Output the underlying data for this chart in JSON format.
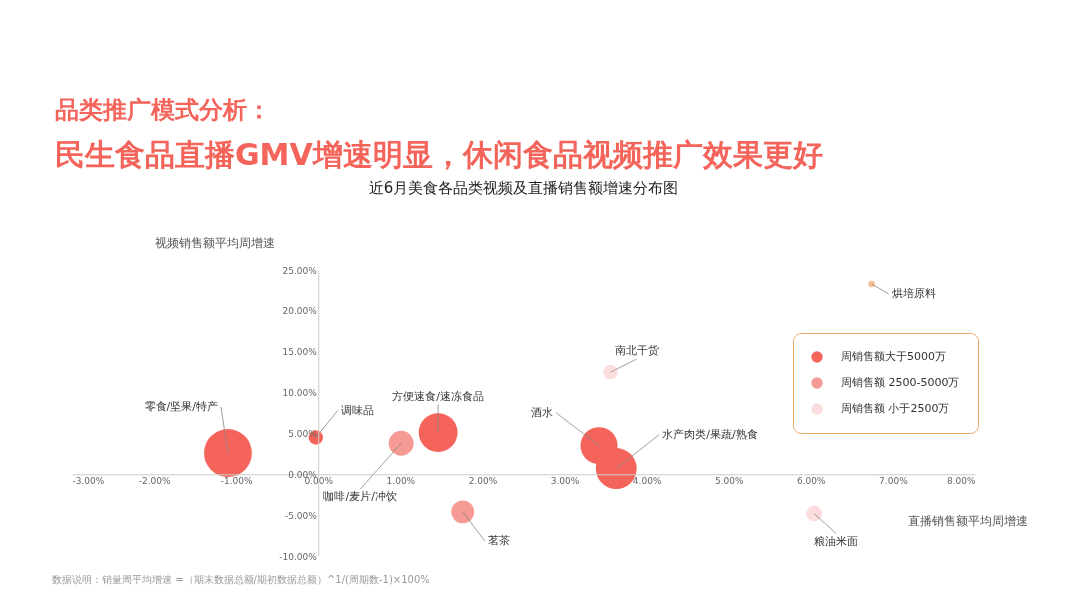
{
  "chart_data": {
    "type": "bubble",
    "title": "近6月美食各品类视频及直播销售额增速分布图",
    "xlabel": "直播销售额平均周增速",
    "ylabel": "视频销售额平均周增速",
    "xlim": [
      -3,
      8
    ],
    "ylim": [
      -10,
      25
    ],
    "xticks": [
      {
        "value": -3,
        "label": "-3.00%"
      },
      {
        "value": -2,
        "label": "-2.00%"
      },
      {
        "value": -1,
        "label": "-1.00%"
      },
      {
        "value": 0,
        "label": "0.00%"
      },
      {
        "value": 1,
        "label": "1.00%"
      },
      {
        "value": 2,
        "label": "2.00%"
      },
      {
        "value": 3,
        "label": "3.00%"
      },
      {
        "value": 4,
        "label": "4.00%"
      },
      {
        "value": 5,
        "label": "5.00%"
      },
      {
        "value": 6,
        "label": "6.00%"
      },
      {
        "value": 7,
        "label": "7.00%"
      },
      {
        "value": 8,
        "label": "8.00%"
      }
    ],
    "yticks": [
      {
        "value": -10,
        "label": "-10.00%"
      },
      {
        "value": -5,
        "label": "-5.00%"
      },
      {
        "value": 0,
        "label": "0.00%"
      },
      {
        "value": 5,
        "label": "5.00%"
      },
      {
        "value": 10,
        "label": "10.00%"
      },
      {
        "value": 15,
        "label": "15.00%"
      },
      {
        "value": 20,
        "label": "20.00%"
      },
      {
        "value": 25,
        "label": "25.00%"
      }
    ],
    "series": [
      {
        "name": "周销售额大于5000万",
        "color": "#f4645a",
        "x": [
          -1.1,
          -0.03,
          1.46,
          3.42,
          3.63
        ],
        "values": [
          2.6,
          4.5,
          5.1,
          3.5,
          0.7
        ],
        "sizes": [
          1,
          0.09,
          0.66,
          0.6,
          0.73
        ]
      },
      {
        "name": "周销售额 2500-5000万",
        "color": "#f59a94",
        "x": [
          1.01,
          1.76
        ],
        "values": [
          3.8,
          -4.6
        ],
        "sizes": [
          0.27,
          0.23
        ]
      },
      {
        "name": "周销售额 小于2500万",
        "color": "#fbdcdf",
        "x": [
          3.56,
          6.04
        ],
        "values": [
          12.5,
          -4.8
        ],
        "sizes": [
          0.09,
          0.11
        ]
      },
      {
        "color": "#f5c49a",
        "x": [
          6.74
        ],
        "values": [
          23.3
        ],
        "sizes": [
          0.02
        ]
      }
    ],
    "legend": "top right",
    "grid": false,
    "annotations": [
      "品类推广模式分析：",
      "民生食品直播GMV增速明显，休闲食品视频推广效果更好",
      "数据说明：销量周平均增速 =（期末数据总额/期初数据总额）^1/(周期数-1)×100%",
      {
        "text": "零食/坚果/特产",
        "x": -1.1,
        "y": 2.6
      },
      {
        "text": "调味品",
        "x": -0.03,
        "y": 4.5
      },
      {
        "text": "方便速食/速冻食品",
        "x": 1.46,
        "y": 5.1
      },
      {
        "text": "咖啡/麦片/冲饮",
        "x": 1.01,
        "y": 3.8
      },
      {
        "text": "茗茶",
        "x": 1.76,
        "y": -4.6
      },
      {
        "text": "酒水",
        "x": 3.42,
        "y": 3.5
      },
      {
        "text": "水产肉类/果蔬/熟食",
        "x": 3.63,
        "y": 0.7
      },
      {
        "text": "南北干货",
        "x": 3.56,
        "y": 12.5
      },
      {
        "text": "粮油米面",
        "x": 6.04,
        "y": -4.8
      },
      {
        "text": "烘培原料",
        "x": 6.74,
        "y": 23.3
      }
    ]
  }
}
